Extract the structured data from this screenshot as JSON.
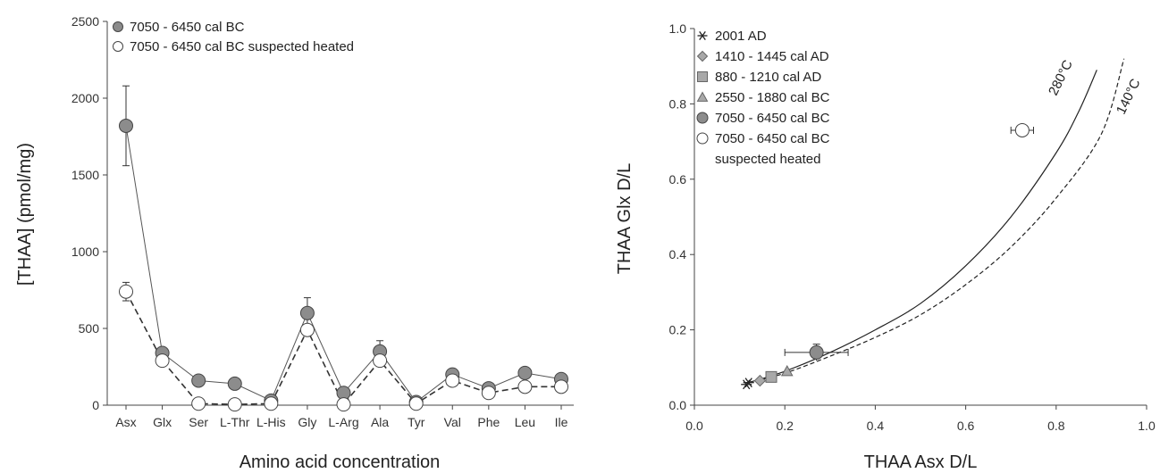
{
  "chart_data": [
    {
      "type": "line",
      "xlabel": "Amino acid concentration",
      "ylabel": "[THAA] (pmol/mg)",
      "ylim": [
        0,
        2500
      ],
      "yticks": [
        0,
        500,
        1000,
        1500,
        2000,
        2500
      ],
      "categories": [
        "Asx",
        "Glx",
        "Ser",
        "L-Thr",
        "L-His",
        "Gly",
        "L-Arg",
        "Ala",
        "Tyr",
        "Val",
        "Phe",
        "Leu",
        "Ile"
      ],
      "legend_position": "top-left",
      "series": [
        {
          "name": "7050  - 6450 cal BC",
          "marker": "filled-circle",
          "line": "solid",
          "color": "#8c8c8c",
          "values": [
            1820,
            340,
            160,
            140,
            30,
            600,
            80,
            350,
            20,
            200,
            110,
            210,
            170
          ],
          "errors": [
            260,
            30,
            0,
            0,
            0,
            100,
            0,
            70,
            0,
            0,
            0,
            20,
            0
          ]
        },
        {
          "name": "7050  - 6450 cal BC suspected heated",
          "marker": "open-circle",
          "line": "dashed",
          "color": "#ffffff",
          "values": [
            740,
            290,
            10,
            5,
            10,
            490,
            5,
            290,
            10,
            160,
            80,
            120,
            120
          ],
          "errors": [
            60,
            0,
            0,
            0,
            0,
            0,
            0,
            0,
            0,
            0,
            0,
            0,
            0
          ]
        }
      ]
    },
    {
      "type": "scatter",
      "xlabel": "THAA Asx D/L",
      "ylabel": "THAA Glx D/L",
      "xlim": [
        0,
        1
      ],
      "ylim": [
        0,
        1
      ],
      "xticks": [
        "0.0",
        "0.2",
        "0.4",
        "0.6",
        "0.8",
        "1.0"
      ],
      "yticks": [
        "0.0",
        "0.2",
        "0.4",
        "0.6",
        "0.8",
        "1.0"
      ],
      "legend_position": "top-left",
      "series": [
        {
          "name": "2001 AD",
          "marker": "asterisk",
          "color": "#333333",
          "points": [
            [
              0.115,
              0.055
            ],
            [
              0.12,
              0.06
            ]
          ]
        },
        {
          "name": "1410 - 1445 cal AD",
          "marker": "diamond",
          "color": "#a8a8a8",
          "points": [
            [
              0.145,
              0.065
            ]
          ]
        },
        {
          "name": "880  - 1210 cal AD",
          "marker": "square",
          "color": "#a8a8a8",
          "points": [
            [
              0.17,
              0.075
            ]
          ]
        },
        {
          "name": "2550  - 1880 cal BC",
          "marker": "triangle",
          "color": "#a8a8a8",
          "points": [
            [
              0.205,
              0.09
            ]
          ]
        },
        {
          "name": "7050  - 6450 cal BC",
          "marker": "filled-circle",
          "color": "#8c8c8c",
          "points": [
            [
              0.27,
              0.14
            ]
          ],
          "xerr": 0.07,
          "yerr": 0.022
        },
        {
          "name": "7050  - 6450 cal BC",
          "name2": "suspected heated",
          "marker": "open-circle",
          "color": "#ffffff",
          "points": [
            [
              0.725,
              0.73
            ]
          ],
          "xerr": 0.025,
          "yerr": 0
        }
      ],
      "curves": [
        {
          "label": "280°C",
          "style": "solid",
          "points": [
            [
              0.12,
              0.06
            ],
            [
              0.2,
              0.09
            ],
            [
              0.3,
              0.14
            ],
            [
              0.4,
              0.2
            ],
            [
              0.5,
              0.27
            ],
            [
              0.6,
              0.37
            ],
            [
              0.7,
              0.5
            ],
            [
              0.8,
              0.67
            ],
            [
              0.85,
              0.78
            ],
            [
              0.89,
              0.89
            ]
          ]
        },
        {
          "label": "140°C",
          "style": "dashed",
          "points": [
            [
              0.12,
              0.06
            ],
            [
              0.2,
              0.085
            ],
            [
              0.3,
              0.13
            ],
            [
              0.4,
              0.18
            ],
            [
              0.5,
              0.24
            ],
            [
              0.6,
              0.32
            ],
            [
              0.7,
              0.42
            ],
            [
              0.8,
              0.55
            ],
            [
              0.9,
              0.72
            ],
            [
              0.95,
              0.92
            ]
          ]
        }
      ]
    }
  ]
}
